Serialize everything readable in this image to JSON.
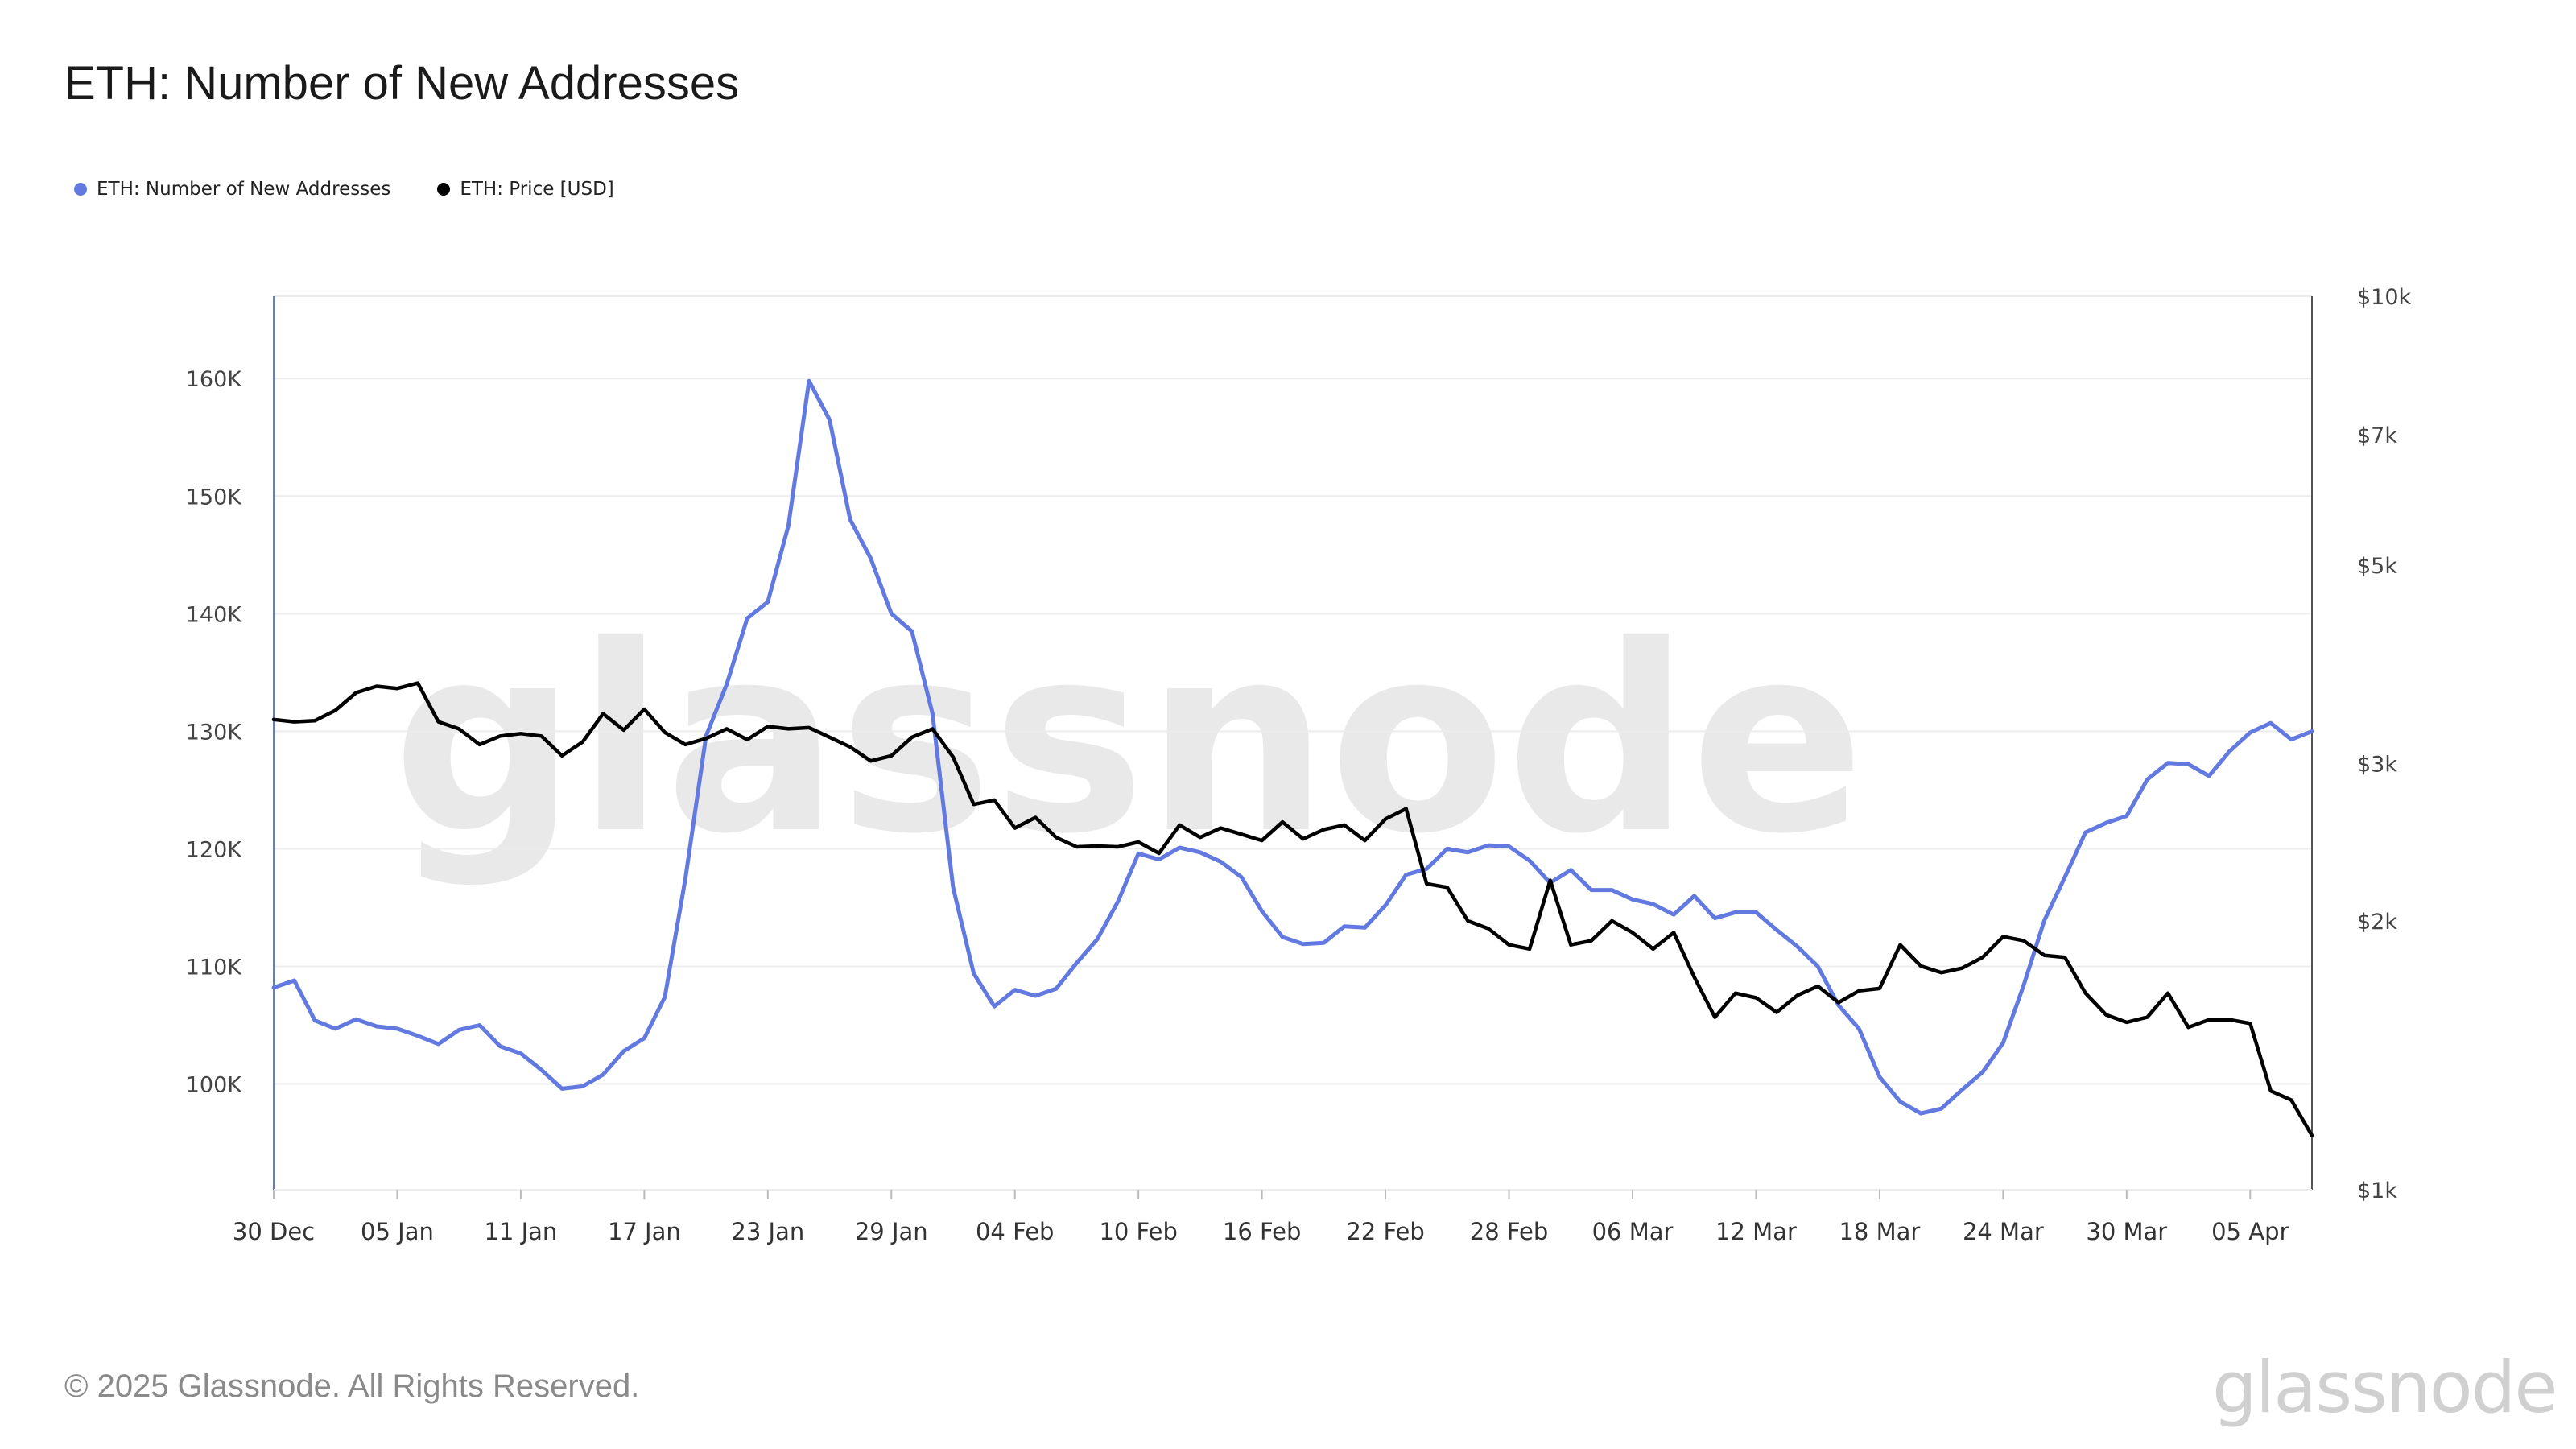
{
  "title": "ETH: Number of New Addresses",
  "footer": "© 2025 Glassnode. All Rights Reserved.",
  "logo_text": "glassnode",
  "watermark_text": "glassnode",
  "colors": {
    "new_addresses": "#6279e0",
    "price": "#000000",
    "grid": "#ececec",
    "watermark": "#e9e9e9"
  },
  "chart_data": {
    "type": "line",
    "title": "ETH: Number of New Addresses",
    "legend_position": "top-left",
    "grid": true,
    "x_tick_labels": [
      "30 Dec",
      "05 Jan",
      "11 Jan",
      "17 Jan",
      "23 Jan",
      "29 Jan",
      "04 Feb",
      "10 Feb",
      "16 Feb",
      "22 Feb",
      "28 Feb",
      "06 Mar",
      "12 Mar",
      "18 Mar",
      "24 Mar",
      "30 Mar",
      "05 Apr"
    ],
    "x_range": [
      "2024-12-30",
      "2025-04-08"
    ],
    "y_left": {
      "ticks": [
        "100K",
        "110K",
        "120K",
        "130K",
        "140K",
        "150K",
        "160K"
      ],
      "range": [
        91000,
        167000
      ],
      "scale": "linear"
    },
    "y_right": {
      "ticks": [
        "$1k",
        "$2k",
        "$3k",
        "$5k",
        "$7k",
        "$10k"
      ],
      "range": [
        1000,
        10000
      ],
      "scale": "log"
    },
    "series": [
      {
        "name": "ETH: Number of New Addresses",
        "axis": "left",
        "color": "#6279e0",
        "values": [
          108200,
          108800,
          105400,
          104700,
          105500,
          104900,
          104700,
          104100,
          103400,
          104600,
          105000,
          103200,
          102600,
          101200,
          99600,
          99800,
          100800,
          102800,
          103900,
          107400,
          117500,
          129600,
          134000,
          139600,
          141000,
          147500,
          159800,
          156500,
          148000,
          144700,
          140000,
          138500,
          131500,
          116700,
          109400,
          106600,
          108000,
          107500,
          108100,
          110300,
          112300,
          115500,
          119600,
          119100,
          120100,
          119700,
          118900,
          117600,
          114700,
          112500,
          111900,
          112000,
          113400,
          113300,
          115200,
          117800,
          118300,
          120000,
          119700,
          120300,
          120200,
          119000,
          117100,
          118200,
          116500,
          116500,
          115700,
          115300,
          114400,
          116000,
          114100,
          114600,
          114600,
          113100,
          111700,
          110000,
          106700,
          104700,
          100600,
          98500,
          97500,
          97900,
          99500,
          101000,
          103500,
          108400,
          113900,
          117600,
          121400,
          122200,
          122800,
          125900,
          127300,
          127200,
          126200,
          128300,
          129900,
          130700,
          129300,
          130000
        ]
      },
      {
        "name": "ETH: Price [USD]",
        "axis": "right",
        "color": "#000000",
        "values": [
          3360,
          3340,
          3350,
          3440,
          3600,
          3660,
          3640,
          3690,
          3340,
          3280,
          3150,
          3220,
          3240,
          3220,
          3060,
          3170,
          3410,
          3270,
          3450,
          3250,
          3150,
          3200,
          3280,
          3190,
          3300,
          3280,
          3290,
          3210,
          3130,
          3020,
          3060,
          3210,
          3280,
          3050,
          2700,
          2730,
          2540,
          2610,
          2480,
          2420,
          2425,
          2420,
          2450,
          2380,
          2560,
          2480,
          2540,
          2500,
          2460,
          2580,
          2470,
          2530,
          2560,
          2460,
          2600,
          2670,
          2200,
          2180,
          2000,
          1960,
          1880,
          1860,
          2220,
          1880,
          1900,
          2000,
          1940,
          1860,
          1940,
          1730,
          1560,
          1660,
          1640,
          1580,
          1650,
          1690,
          1620,
          1670,
          1680,
          1880,
          1780,
          1750,
          1770,
          1820,
          1920,
          1900,
          1830,
          1820,
          1660,
          1570,
          1540,
          1560,
          1660,
          1520,
          1550,
          1550,
          1535,
          1290,
          1260,
          1150
        ]
      }
    ]
  }
}
